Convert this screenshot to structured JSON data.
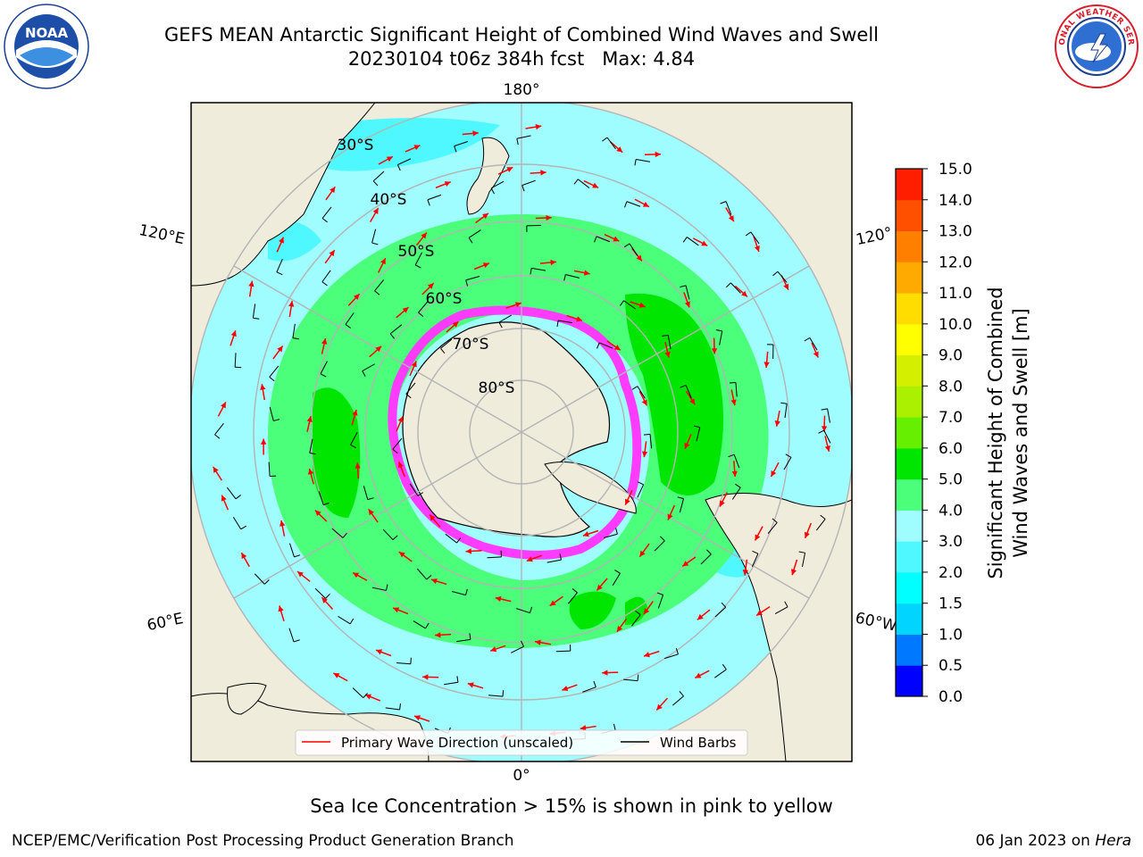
{
  "header": {
    "title_line1": "GEFS MEAN Antarctic Significant Height of Combined Wind Waves and Swell",
    "title_line2": "20230104 t06z 384h fcst   Max: 4.84"
  },
  "logos": {
    "left": {
      "icon": "noaa-logo",
      "text": "NOAA"
    },
    "right": {
      "icon": "national-weather-service-logo",
      "text": "NATIONAL WEATHER SERVICE"
    }
  },
  "map": {
    "projection": "south-polar-stereographic",
    "longitude_labels": {
      "top": "180°",
      "bottom": "0°",
      "upper_left": "120°E",
      "upper_right": "120°",
      "lower_left": "60°E",
      "lower_right": "60°W"
    },
    "latitude_labels": [
      "30°S",
      "40°S",
      "50°S",
      "60°S",
      "70°S",
      "80°S"
    ],
    "legend": {
      "wave_label": "Primary Wave Direction (unscaled)",
      "barb_label": "Wind Barbs",
      "wave_color": "#ff0000",
      "barb_color": "#000000"
    },
    "colors": {
      "land": "#efecdc",
      "ocean_default": "#9ffcff",
      "band_2_3": "#9ffcff",
      "band_3_4": "#4cff7a",
      "band_4_5": "#00e600",
      "band_1_5_2": "#4ff7ff",
      "ice_pink": "#ff3bff",
      "ice_blue": "#2f6fff"
    }
  },
  "colorbar": {
    "label_line1": "Significant Height of Combined",
    "label_line2": "Wind Waves and Swell [m]",
    "ticks": [
      "0.0",
      "0.5",
      "1.0",
      "1.5",
      "2.0",
      "3.0",
      "4.0",
      "5.0",
      "6.0",
      "7.0",
      "8.0",
      "9.0",
      "10.0",
      "11.0",
      "12.0",
      "13.0",
      "14.0",
      "15.0"
    ],
    "colors": [
      "#0000ff",
      "#0078ff",
      "#00d4ff",
      "#00ffff",
      "#4ff7ff",
      "#9ffcff",
      "#4cff7a",
      "#00e600",
      "#66f000",
      "#aaf000",
      "#d4f000",
      "#ffff00",
      "#ffdd00",
      "#ffaa00",
      "#ff8000",
      "#ff5000",
      "#ff1e00"
    ]
  },
  "footer": {
    "note": "Sea Ice Concentration > 15% is shown in pink to yellow",
    "left": "NCEP/EMC/Verification Post Processing Product Generation Branch",
    "right_date": "06 Jan 2023 on",
    "right_machine": "Hera"
  }
}
